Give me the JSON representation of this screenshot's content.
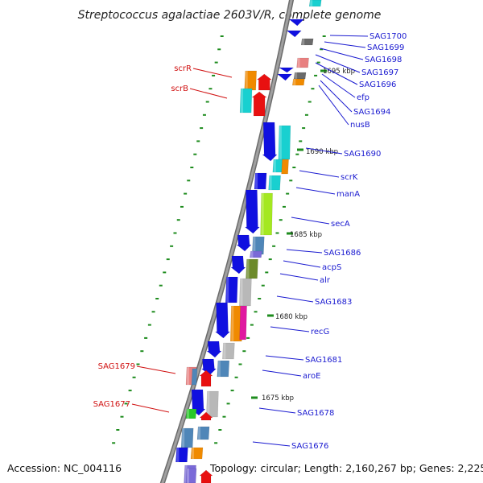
{
  "title": "Streptococcus agalactiae 2603V/R, complete genome",
  "footer": {
    "accession": "Accession: NC_004116",
    "topology": "Topology: circular; Length: 2,160,267 bp; Genes: 2,225"
  },
  "scale_labels": [
    "1695 kbp",
    "1690 kbp",
    "1685 kbp",
    "1680 kbp",
    "1675 kbp"
  ],
  "gene_labels_right": [
    "SAG1700",
    "SAG1699",
    "SAG1698",
    "SAG1697",
    "SAG1696",
    "efp",
    "SAG1694",
    "nusB",
    "SAG1690",
    "scrK",
    "manA",
    "secA",
    "SAG1686",
    "acpS",
    "alr",
    "SAG1683",
    "recG",
    "SAG1681",
    "aroE",
    "SAG1678",
    "SAG1676"
  ],
  "gene_labels_left": [
    "scrR",
    "scrB",
    "SAG1679",
    "SAG1677"
  ],
  "colors": {
    "backbone": "#8a8a8a",
    "tick": "#1e8c1e",
    "label_right": "#1a1ad0",
    "label_left": "#d01010",
    "gene_blue": "#1010e0",
    "gene_red": "#e81010",
    "gene_cyan": "#18d0d0",
    "gene_orange": "#f08a00",
    "gene_gray": "#b8b8b8",
    "gene_dark_gray": "#6a6a6a",
    "gene_steel": "#4f86b8",
    "gene_lime": "#a4e820",
    "gene_olive": "#6c8a2a",
    "gene_purple": "#7a6ad8",
    "gene_pink": "#f078a0",
    "gene_magenta": "#e018a0",
    "gene_green": "#28c828",
    "gene_salmon": "#e88080"
  }
}
